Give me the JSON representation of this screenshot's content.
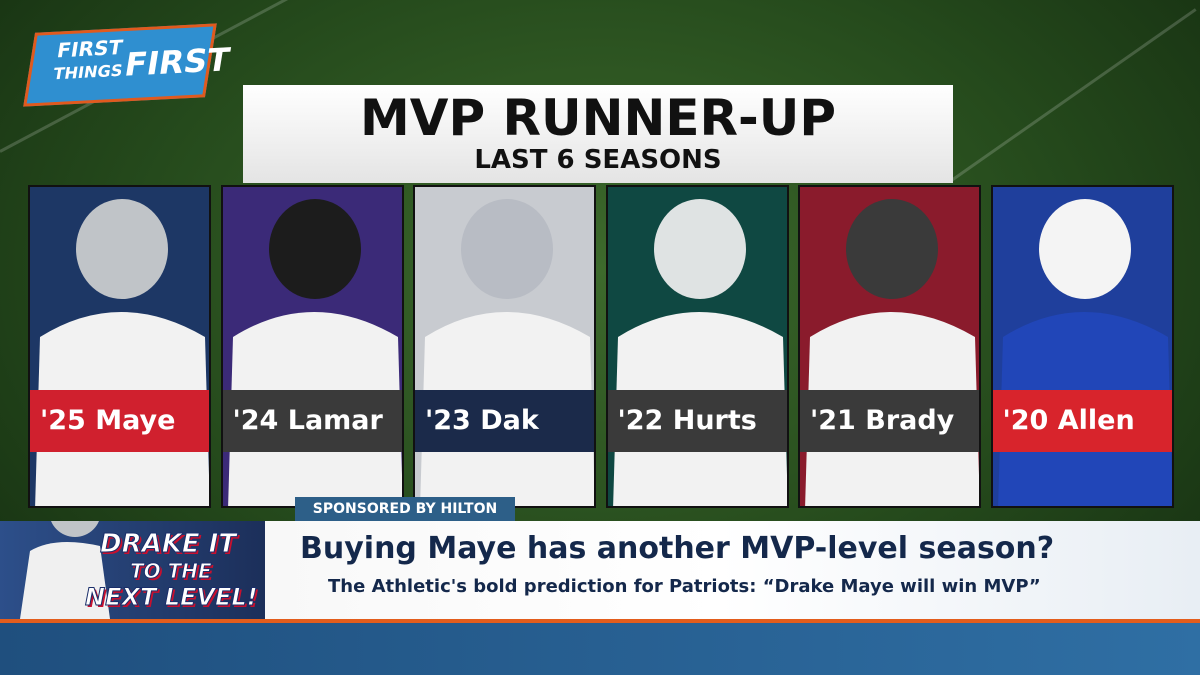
{
  "logo": {
    "line1": "FIRST",
    "line2": "THINGS",
    "line3": "FIRST"
  },
  "graphic": {
    "title": "MVP RUNNER-UP",
    "subtitle": "LAST 6 SEASONS",
    "cards": [
      {
        "label": "'25 Maye"
      },
      {
        "label": "'24 Lamar"
      },
      {
        "label": "'23 Dak"
      },
      {
        "label": "'22 Hurts"
      },
      {
        "label": "'21 Brady"
      },
      {
        "label": "'20 Allen"
      }
    ]
  },
  "sponsor": "SPONSORED BY HILTON",
  "promo": {
    "line1": "DRAKE IT",
    "line2": "TO THE",
    "line3": "NEXT LEVEL!"
  },
  "lower_third": {
    "headline": "Buying Maye has another MVP-level season?",
    "subheadline": "The Athletic's bold prediction for Patriots: “Drake Maye will win MVP”"
  }
}
